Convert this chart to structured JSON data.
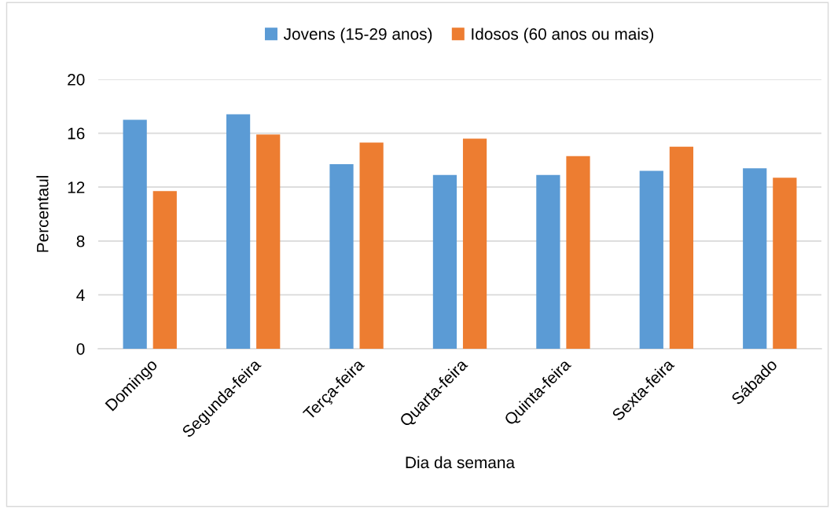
{
  "chart_data": {
    "type": "bar",
    "xlabel": "Dia da semana",
    "ylabel": "Percentaul",
    "categories": [
      "Domingo",
      "Segunda-feira",
      "Terça-feira",
      "Quarta-feira",
      "Quinta-feira",
      "Sexta-feira",
      "Sábado"
    ],
    "series": [
      {
        "name": "Jovens (15-29 anos)",
        "color": "#5b9bd5",
        "values": [
          17.0,
          17.4,
          13.7,
          12.9,
          12.9,
          13.2,
          13.4
        ]
      },
      {
        "name": "Idosos (60 anos ou mais)",
        "color": "#ed7d31",
        "values": [
          11.7,
          15.9,
          15.3,
          15.6,
          14.3,
          15.0,
          12.7
        ]
      }
    ],
    "ylim": [
      0,
      20
    ],
    "yticks": [
      0,
      4,
      8,
      12,
      16,
      20
    ],
    "grid": "y",
    "legend": "top"
  }
}
